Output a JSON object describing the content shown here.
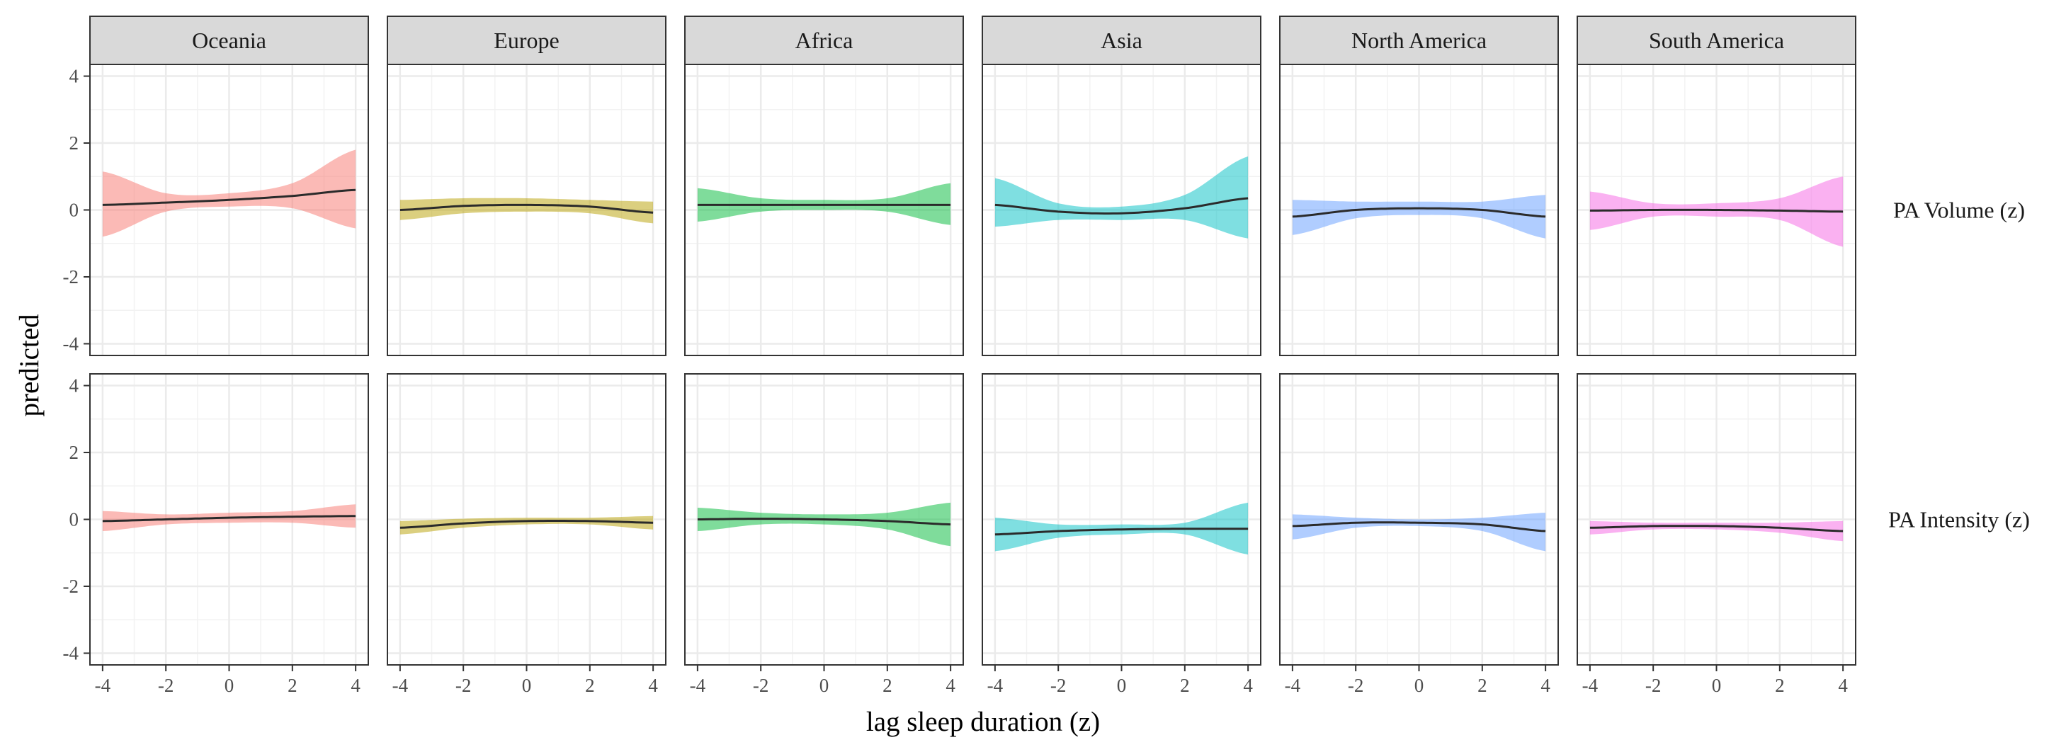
{
  "chart_data": {
    "type": "line",
    "title": "",
    "xlabel": "lag sleep duration (z)",
    "ylabel": "predicted",
    "xlim": [
      -4.4,
      4.4
    ],
    "ylim": [
      -4.35,
      4.35
    ],
    "x_ticks": [
      -4,
      -2,
      0,
      2,
      4
    ],
    "x_tick_labels": [
      "-4",
      "-2",
      "0",
      "2",
      "4"
    ],
    "y_ticks": [
      -4,
      -2,
      0,
      2,
      4
    ],
    "y_tick_labels": [
      "-4",
      "-2",
      "0",
      "2",
      "4"
    ],
    "grid": true,
    "legend": "none",
    "columns": [
      {
        "name": "Oceania",
        "color": "#F8766D"
      },
      {
        "name": "Europe",
        "color": "#B79F00"
      },
      {
        "name": "Africa",
        "color": "#00BA38"
      },
      {
        "name": "Asia",
        "color": "#00BFC4"
      },
      {
        "name": "North America",
        "color": "#619CFF"
      },
      {
        "name": "South America",
        "color": "#F564E3"
      }
    ],
    "rows": [
      {
        "name": "PA Volume (z)",
        "panels": [
          {
            "x": [
              -4,
              -2,
              0,
              2,
              4
            ],
            "fit": [
              0.15,
              0.22,
              0.3,
              0.42,
              0.6
            ],
            "lower": [
              -0.8,
              -0.05,
              0.1,
              0.05,
              -0.55
            ],
            "upper": [
              1.15,
              0.5,
              0.5,
              0.8,
              1.8
            ]
          },
          {
            "x": [
              -4,
              -2,
              0,
              2,
              4
            ],
            "fit": [
              0.0,
              0.12,
              0.15,
              0.1,
              -0.08
            ],
            "lower": [
              -0.3,
              -0.1,
              -0.05,
              -0.1,
              -0.4
            ],
            "upper": [
              0.3,
              0.35,
              0.35,
              0.3,
              0.25
            ]
          },
          {
            "x": [
              -4,
              -2,
              0,
              2,
              4
            ],
            "fit": [
              0.15,
              0.15,
              0.15,
              0.15,
              0.15
            ],
            "lower": [
              -0.35,
              -0.05,
              0.0,
              -0.05,
              -0.45
            ],
            "upper": [
              0.65,
              0.35,
              0.3,
              0.35,
              0.8
            ]
          },
          {
            "x": [
              -4,
              -2,
              0,
              2,
              4
            ],
            "fit": [
              0.15,
              -0.05,
              -0.1,
              0.05,
              0.35
            ],
            "lower": [
              -0.5,
              -0.3,
              -0.3,
              -0.3,
              -0.85
            ],
            "upper": [
              0.95,
              0.2,
              0.1,
              0.45,
              1.6
            ]
          },
          {
            "x": [
              -4,
              -2,
              0,
              2,
              4
            ],
            "fit": [
              -0.2,
              0.0,
              0.05,
              0.0,
              -0.2
            ],
            "lower": [
              -0.75,
              -0.25,
              -0.15,
              -0.25,
              -0.85
            ],
            "upper": [
              0.3,
              0.25,
              0.25,
              0.25,
              0.45
            ]
          },
          {
            "x": [
              -4,
              -2,
              0,
              2,
              4
            ],
            "fit": [
              -0.02,
              0.0,
              0.0,
              -0.02,
              -0.05
            ],
            "lower": [
              -0.6,
              -0.2,
              -0.2,
              -0.3,
              -1.1
            ],
            "upper": [
              0.55,
              0.2,
              0.2,
              0.35,
              1.0
            ]
          }
        ]
      },
      {
        "name": "PA Intensity (z)",
        "panels": [
          {
            "x": [
              -4,
              -2,
              0,
              2,
              4
            ],
            "fit": [
              -0.05,
              0.0,
              0.05,
              0.08,
              0.1
            ],
            "lower": [
              -0.35,
              -0.15,
              -0.1,
              -0.1,
              -0.25
            ],
            "upper": [
              0.25,
              0.15,
              0.2,
              0.25,
              0.45
            ]
          },
          {
            "x": [
              -4,
              -2,
              0,
              2,
              4
            ],
            "fit": [
              -0.25,
              -0.12,
              -0.05,
              -0.05,
              -0.1
            ],
            "lower": [
              -0.45,
              -0.25,
              -0.15,
              -0.15,
              -0.3
            ],
            "upper": [
              -0.05,
              0.02,
              0.05,
              0.05,
              0.1
            ]
          },
          {
            "x": [
              -4,
              -2,
              0,
              2,
              4
            ],
            "fit": [
              0.0,
              0.02,
              0.0,
              -0.05,
              -0.15
            ],
            "lower": [
              -0.35,
              -0.15,
              -0.15,
              -0.3,
              -0.8
            ],
            "upper": [
              0.35,
              0.2,
              0.15,
              0.2,
              0.5
            ]
          },
          {
            "x": [
              -4,
              -2,
              0,
              2,
              4
            ],
            "fit": [
              -0.45,
              -0.35,
              -0.3,
              -0.28,
              -0.28
            ],
            "lower": [
              -0.95,
              -0.55,
              -0.45,
              -0.45,
              -1.05
            ],
            "upper": [
              0.05,
              -0.15,
              -0.15,
              -0.1,
              0.5
            ]
          },
          {
            "x": [
              -4,
              -2,
              0,
              2,
              4
            ],
            "fit": [
              -0.2,
              -0.1,
              -0.1,
              -0.15,
              -0.35
            ],
            "lower": [
              -0.6,
              -0.25,
              -0.2,
              -0.35,
              -0.95
            ],
            "upper": [
              0.15,
              0.05,
              0.0,
              0.05,
              0.2
            ]
          },
          {
            "x": [
              -4,
              -2,
              0,
              2,
              4
            ],
            "fit": [
              -0.25,
              -0.2,
              -0.2,
              -0.25,
              -0.35
            ],
            "lower": [
              -0.45,
              -0.3,
              -0.3,
              -0.4,
              -0.65
            ],
            "upper": [
              -0.05,
              -0.1,
              -0.1,
              -0.1,
              -0.05
            ]
          }
        ]
      }
    ]
  }
}
